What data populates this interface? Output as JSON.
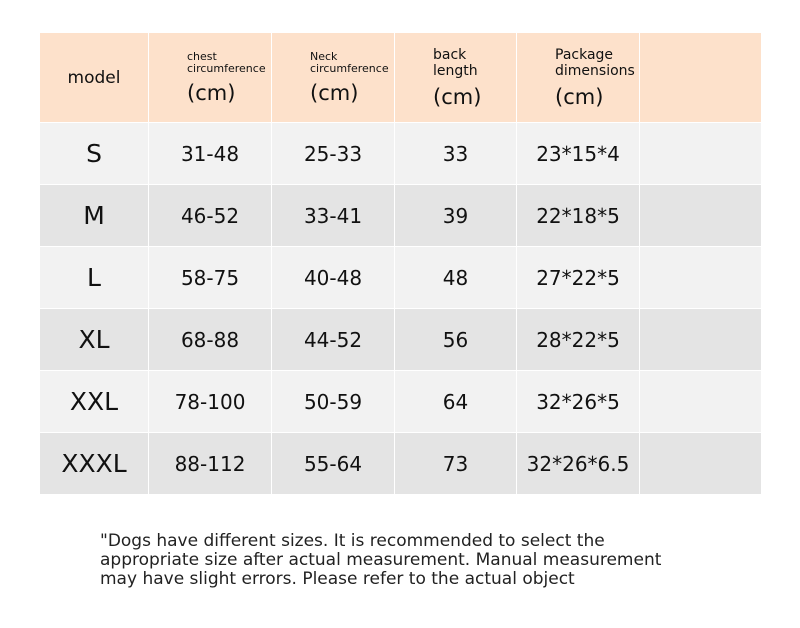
{
  "table": {
    "header": [
      {
        "label": "model"
      },
      {
        "label": "chest circumference",
        "unit": "(cm)"
      },
      {
        "label": "Neck circumference",
        "unit": "(cm)"
      },
      {
        "label": "back length",
        "unit": "(cm)"
      },
      {
        "label": "Package dimensions",
        "unit": "(cm)"
      }
    ],
    "rows": [
      [
        "S",
        "31-48",
        "25-33",
        "33",
        "23*15*4"
      ],
      [
        "M",
        "46-52",
        "33-41",
        "39",
        "22*18*5"
      ],
      [
        "L",
        "58-75",
        "40-48",
        "48",
        "27*22*5"
      ],
      [
        "XL",
        "68-88",
        "44-52",
        "56",
        "28*22*5"
      ],
      [
        "XXL",
        "78-100",
        "50-59",
        "64",
        "32*26*5"
      ],
      [
        "XXXL",
        "88-112",
        "55-64",
        "73",
        "32*26*6.5"
      ]
    ]
  },
  "note": {
    "lines": [
      "\"Dogs have different sizes. It is recommended to select the",
      "appropriate size after actual measurement. Manual measurement",
      "may have slight errors. Please refer to the actual object"
    ]
  }
}
